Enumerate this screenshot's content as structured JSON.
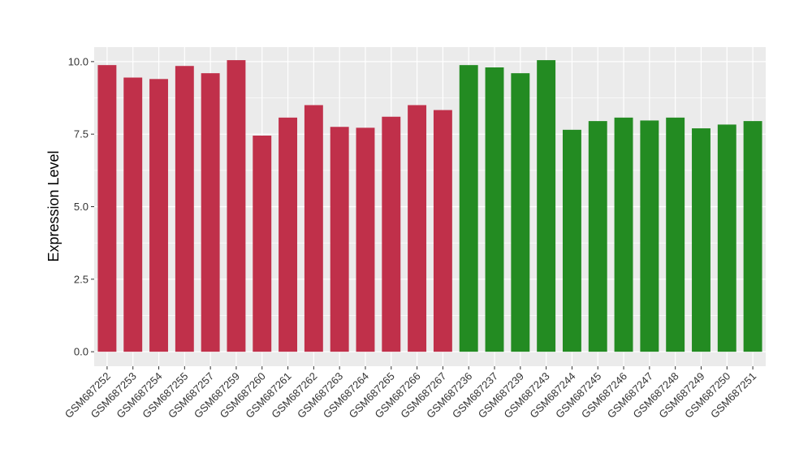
{
  "chart_data": {
    "type": "bar",
    "title": "",
    "xlabel": "",
    "ylabel": "Expression Level",
    "ylim": [
      -0.5,
      10.5
    ],
    "yticks": [
      "0.0",
      "2.5",
      "5.0",
      "7.5",
      "10.0"
    ],
    "grid": true,
    "legend": "none",
    "categories": [
      "GSM687252",
      "GSM687253",
      "GSM687254",
      "GSM687255",
      "GSM687257",
      "GSM687259",
      "GSM687260",
      "GSM687261",
      "GSM687262",
      "GSM687263",
      "GSM687264",
      "GSM687265",
      "GSM687266",
      "GSM687267",
      "GSM687236",
      "GSM687237",
      "GSM687239",
      "GSM687243",
      "GSM687244",
      "GSM687245",
      "GSM687246",
      "GSM687247",
      "GSM687248",
      "GSM687249",
      "GSM687250",
      "GSM687251"
    ],
    "values": [
      9.88,
      9.45,
      9.4,
      9.85,
      9.6,
      10.05,
      7.45,
      8.07,
      8.5,
      7.75,
      7.72,
      8.1,
      8.5,
      8.33,
      9.88,
      9.8,
      9.6,
      10.05,
      7.65,
      7.95,
      8.07,
      7.97,
      8.07,
      7.7,
      7.83,
      7.95
    ],
    "group_index": [
      0,
      0,
      0,
      0,
      0,
      0,
      0,
      0,
      0,
      0,
      0,
      0,
      0,
      0,
      1,
      1,
      1,
      1,
      1,
      1,
      1,
      1,
      1,
      1,
      1,
      1
    ],
    "group_colors": [
      "#c0304a",
      "#238b22"
    ],
    "panel_color": "#ebebeb",
    "grid_color": "#ffffff"
  }
}
